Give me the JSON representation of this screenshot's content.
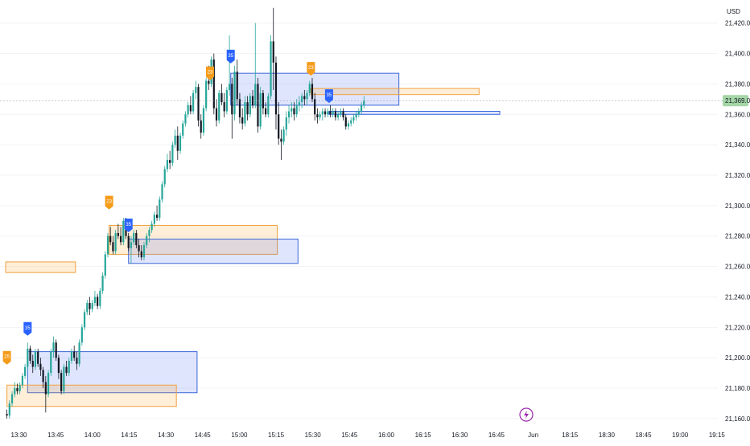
{
  "chart_data": {
    "type": "candlestick",
    "currency_label": "USD",
    "price_ticks": [
      21420,
      21400,
      21380,
      21360,
      21340,
      21320,
      21300,
      21280,
      21260,
      21240,
      21220,
      21200,
      21180,
      21160
    ],
    "price_ticks_text": [
      "21,420.00",
      "21,400.00",
      "21,380.00",
      "21,360.00",
      "21,340.00",
      "21,320.00",
      "21,300.00",
      "21,280.00",
      "21,260.00",
      "21,240.00",
      "21,220.00",
      "21,200.00",
      "21,180.00",
      "21,160.00"
    ],
    "ylim": [
      21160,
      21430
    ],
    "current_price": 21369.0,
    "current_price_text": "21,369.00",
    "time_ticks": [
      "13:30",
      "13:45",
      "14:00",
      "14:15",
      "14:30",
      "14:45",
      "15:00",
      "15:15",
      "15:30",
      "15:45",
      "16:00",
      "16:15",
      "16:30",
      "16:45",
      "Jun",
      "18:15",
      "18:30",
      "18:45",
      "19:00",
      "19:15"
    ],
    "bullish_color": "#26a69a",
    "bearish_color": "#131722",
    "zones": [
      {
        "kind": "supply",
        "t_start": 0.0,
        "t_end": 27.0,
        "p_low": 21256,
        "p_high": 21263
      },
      {
        "kind": "demand",
        "t_start": 8.5,
        "t_end": 74.0,
        "p_low": 21177,
        "p_high": 21204
      },
      {
        "kind": "supply",
        "t_start": 0.5,
        "t_end": 66.0,
        "p_low": 21168,
        "p_high": 21182
      },
      {
        "kind": "supply",
        "t_start": 40.0,
        "t_end": 105.0,
        "p_low": 21268,
        "p_high": 21287
      },
      {
        "kind": "demand",
        "t_start": 47.5,
        "t_end": 113.0,
        "p_low": 21262,
        "p_high": 21278
      },
      {
        "kind": "demand",
        "t_start": 87.0,
        "t_end": 152.0,
        "p_low": 21366,
        "p_high": 21387
      },
      {
        "kind": "supply",
        "t_start": 118.0,
        "t_end": 183.0,
        "p_low": 21373,
        "p_high": 21377
      },
      {
        "kind": "demand",
        "t_start": 125.0,
        "t_end": 191.0,
        "p_low": 21360,
        "p_high": 21362
      }
    ],
    "markers": [
      {
        "kind": "supply",
        "t": 0.5,
        "price": 21196,
        "label": "25"
      },
      {
        "kind": "demand",
        "t": 8.5,
        "price": 21215,
        "label": "35"
      },
      {
        "kind": "supply",
        "t": 40.0,
        "price": 21298,
        "label": "23"
      },
      {
        "kind": "demand",
        "t": 47.5,
        "price": 21283,
        "label": "35"
      },
      {
        "kind": "supply",
        "t": 79.0,
        "price": 21383,
        "label": "23"
      },
      {
        "kind": "demand",
        "t": 87.0,
        "price": 21394,
        "label": "35"
      },
      {
        "kind": "supply",
        "t": 118.0,
        "price": 21386,
        "label": "23"
      },
      {
        "kind": "demand",
        "t": 125.0,
        "price": 21368,
        "label": "35"
      }
    ],
    "candles": [
      [
        21163,
        21166,
        21160,
        21162
      ],
      [
        21162,
        21172,
        21160,
        21170
      ],
      [
        21170,
        21178,
        21168,
        21176
      ],
      [
        21176,
        21184,
        21174,
        21180
      ],
      [
        21180,
        21183,
        21176,
        21178
      ],
      [
        21178,
        21184,
        21176,
        21182
      ],
      [
        21182,
        21190,
        21180,
        21188
      ],
      [
        21188,
        21196,
        21186,
        21194
      ],
      [
        21194,
        21210,
        21192,
        21206
      ],
      [
        21206,
        21208,
        21196,
        21198
      ],
      [
        21198,
        21202,
        21190,
        21194
      ],
      [
        21194,
        21206,
        21192,
        21204
      ],
      [
        21204,
        21206,
        21194,
        21196
      ],
      [
        21196,
        21200,
        21188,
        21192
      ],
      [
        21192,
        21194,
        21180,
        21184
      ],
      [
        21184,
        21188,
        21164,
        21176
      ],
      [
        21176,
        21192,
        21174,
        21190
      ],
      [
        21190,
        21206,
        21188,
        21204
      ],
      [
        21204,
        21214,
        21200,
        21210
      ],
      [
        21210,
        21212,
        21198,
        21200
      ],
      [
        21200,
        21202,
        21186,
        21190
      ],
      [
        21190,
        21192,
        21176,
        21178
      ],
      [
        21178,
        21196,
        21176,
        21194
      ],
      [
        21194,
        21198,
        21188,
        21190
      ],
      [
        21190,
        21200,
        21188,
        21198
      ],
      [
        21198,
        21206,
        21196,
        21204
      ],
      [
        21204,
        21208,
        21198,
        21200
      ],
      [
        21200,
        21204,
        21192,
        21196
      ],
      [
        21196,
        21212,
        21194,
        21210
      ],
      [
        21210,
        21222,
        21208,
        21220
      ],
      [
        21220,
        21232,
        21218,
        21230
      ],
      [
        21230,
        21238,
        21228,
        21236
      ],
      [
        21236,
        21240,
        21228,
        21232
      ],
      [
        21232,
        21238,
        21230,
        21236
      ],
      [
        21236,
        21244,
        21234,
        21240
      ],
      [
        21240,
        21242,
        21232,
        21234
      ],
      [
        21234,
        21246,
        21232,
        21244
      ],
      [
        21244,
        21256,
        21242,
        21254
      ],
      [
        21254,
        21270,
        21252,
        21268
      ],
      [
        21268,
        21282,
        21266,
        21280
      ],
      [
        21280,
        21286,
        21274,
        21276
      ],
      [
        21276,
        21280,
        21268,
        21270
      ],
      [
        21270,
        21284,
        21268,
        21282
      ],
      [
        21282,
        21288,
        21278,
        21280
      ],
      [
        21280,
        21286,
        21274,
        21276
      ],
      [
        21276,
        21292,
        21274,
        21290
      ],
      [
        21290,
        21292,
        21278,
        21280
      ],
      [
        21280,
        21282,
        21270,
        21272
      ],
      [
        21272,
        21280,
        21262,
        21276
      ],
      [
        21276,
        21284,
        21274,
        21282
      ],
      [
        21282,
        21284,
        21272,
        21274
      ],
      [
        21274,
        21278,
        21266,
        21270
      ],
      [
        21270,
        21274,
        21264,
        21266
      ],
      [
        21266,
        21276,
        21264,
        21274
      ],
      [
        21274,
        21282,
        21272,
        21280
      ],
      [
        21280,
        21286,
        21276,
        21284
      ],
      [
        21284,
        21290,
        21282,
        21288
      ],
      [
        21288,
        21296,
        21286,
        21294
      ],
      [
        21294,
        21300,
        21290,
        21292
      ],
      [
        21292,
        21306,
        21290,
        21304
      ],
      [
        21304,
        21316,
        21302,
        21314
      ],
      [
        21314,
        21326,
        21312,
        21324
      ],
      [
        21324,
        21334,
        21322,
        21330
      ],
      [
        21330,
        21336,
        21324,
        21328
      ],
      [
        21328,
        21342,
        21326,
        21340
      ],
      [
        21340,
        21350,
        21338,
        21346
      ],
      [
        21346,
        21352,
        21330,
        21336
      ],
      [
        21336,
        21348,
        21334,
        21346
      ],
      [
        21346,
        21356,
        21344,
        21354
      ],
      [
        21354,
        21362,
        21352,
        21360
      ],
      [
        21360,
        21368,
        21358,
        21366
      ],
      [
        21366,
        21372,
        21360,
        21362
      ],
      [
        21362,
        21376,
        21360,
        21374
      ],
      [
        21374,
        21382,
        21370,
        21378
      ],
      [
        21378,
        21380,
        21352,
        21356
      ],
      [
        21356,
        21360,
        21344,
        21348
      ],
      [
        21348,
        21366,
        21346,
        21364
      ],
      [
        21364,
        21384,
        21362,
        21382
      ],
      [
        21382,
        21392,
        21376,
        21380
      ],
      [
        21380,
        21398,
        21378,
        21396
      ],
      [
        21396,
        21400,
        21360,
        21364
      ],
      [
        21364,
        21370,
        21352,
        21356
      ],
      [
        21356,
        21376,
        21354,
        21374
      ],
      [
        21374,
        21380,
        21366,
        21368
      ],
      [
        21368,
        21374,
        21358,
        21362
      ],
      [
        21362,
        21378,
        21360,
        21376
      ],
      [
        21376,
        21412,
        21372,
        21380
      ],
      [
        21380,
        21384,
        21344,
        21360
      ],
      [
        21360,
        21392,
        21356,
        21388
      ],
      [
        21388,
        21396,
        21366,
        21370
      ],
      [
        21370,
        21374,
        21354,
        21358
      ],
      [
        21358,
        21364,
        21350,
        21354
      ],
      [
        21354,
        21372,
        21352,
        21368
      ],
      [
        21368,
        21372,
        21356,
        21360
      ],
      [
        21360,
        21374,
        21358,
        21372
      ],
      [
        21372,
        21376,
        21364,
        21366
      ],
      [
        21366,
        21420,
        21364,
        21380
      ],
      [
        21380,
        21384,
        21348,
        21352
      ],
      [
        21352,
        21378,
        21350,
        21374
      ],
      [
        21374,
        21376,
        21360,
        21364
      ],
      [
        21364,
        21368,
        21358,
        21360
      ],
      [
        21360,
        21374,
        21358,
        21372
      ],
      [
        21372,
        21412,
        21370,
        21408
      ],
      [
        21408,
        21430,
        21376,
        21394
      ],
      [
        21394,
        21398,
        21350,
        21360
      ],
      [
        21360,
        21368,
        21340,
        21344
      ],
      [
        21344,
        21350,
        21330,
        21342
      ],
      [
        21342,
        21352,
        21340,
        21350
      ],
      [
        21350,
        21362,
        21346,
        21358
      ],
      [
        21358,
        21366,
        21354,
        21362
      ],
      [
        21362,
        21368,
        21358,
        21364
      ],
      [
        21364,
        21368,
        21356,
        21360
      ],
      [
        21360,
        21370,
        21358,
        21366
      ],
      [
        21366,
        21372,
        21362,
        21368
      ],
      [
        21368,
        21374,
        21364,
        21372
      ],
      [
        21372,
        21376,
        21366,
        21370
      ],
      [
        21370,
        21376,
        21366,
        21374
      ],
      [
        21374,
        21382,
        21372,
        21380
      ],
      [
        21380,
        21384,
        21368,
        21370
      ],
      [
        21370,
        21374,
        21356,
        21360
      ],
      [
        21360,
        21364,
        21354,
        21358
      ],
      [
        21358,
        21362,
        21356,
        21360
      ],
      [
        21360,
        21364,
        21356,
        21362
      ],
      [
        21362,
        21364,
        21358,
        21360
      ],
      [
        21360,
        21364,
        21358,
        21362
      ],
      [
        21362,
        21366,
        21358,
        21360
      ],
      [
        21360,
        21364,
        21358,
        21362
      ],
      [
        21362,
        21364,
        21356,
        21358
      ],
      [
        21358,
        21362,
        21356,
        21360
      ],
      [
        21360,
        21364,
        21358,
        21362
      ],
      [
        21362,
        21364,
        21356,
        21358
      ],
      [
        21358,
        21360,
        21350,
        21352
      ],
      [
        21352,
        21356,
        21350,
        21354
      ],
      [
        21354,
        21358,
        21352,
        21356
      ],
      [
        21356,
        21360,
        21354,
        21358
      ],
      [
        21358,
        21362,
        21356,
        21360
      ],
      [
        21360,
        21364,
        21358,
        21362
      ],
      [
        21362,
        21368,
        21360,
        21366
      ],
      [
        21366,
        21372,
        21364,
        21369
      ]
    ]
  },
  "toolbar": {
    "flash_icon": "lightning-icon"
  }
}
